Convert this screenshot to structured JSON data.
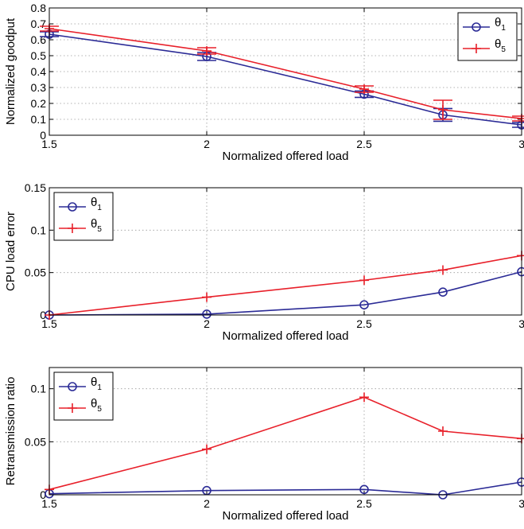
{
  "chart_data": [
    {
      "type": "line",
      "title": "",
      "xlabel": "Normalized offered load",
      "ylabel": "Normalized goodput",
      "xlim": [
        1.5,
        3
      ],
      "ylim": [
        0,
        0.8
      ],
      "xticks": [
        "1.5",
        "2",
        "2.5",
        "3"
      ],
      "yticks": [
        "0",
        "0.1",
        "0.2",
        "0.3",
        "0.4",
        "0.5",
        "0.6",
        "0.7",
        "0.8"
      ],
      "grid": true,
      "legend_position": "top-right",
      "x": [
        1.5,
        2,
        2.5,
        2.75,
        3
      ],
      "series": [
        {
          "name": "θ",
          "subscript": "1",
          "marker": "circle",
          "color": "#2b2b96",
          "values": [
            0.635,
            0.495,
            0.258,
            0.128,
            0.065
          ],
          "errors": [
            0.015,
            0.025,
            0.02,
            0.04,
            0.015
          ]
        },
        {
          "name": "θ",
          "subscript": "5",
          "marker": "plus",
          "color": "#e8202a",
          "values": [
            0.67,
            0.53,
            0.29,
            0.16,
            0.105
          ],
          "errors": [
            0.015,
            0.02,
            0.02,
            0.06,
            0.015
          ]
        }
      ]
    },
    {
      "type": "line",
      "title": "",
      "xlabel": "Normalized offered load",
      "ylabel": "CPU load error",
      "xlim": [
        1.5,
        3
      ],
      "ylim": [
        0,
        0.15
      ],
      "xticks": [
        "1.5",
        "2",
        "2.5",
        "3"
      ],
      "yticks": [
        "0",
        "0.05",
        "0.1",
        "0.15"
      ],
      "grid": true,
      "legend_position": "top-left",
      "x": [
        1.5,
        2,
        2.5,
        2.75,
        3
      ],
      "series": [
        {
          "name": "θ",
          "subscript": "1",
          "marker": "circle",
          "color": "#2b2b96",
          "values": [
            0,
            0.001,
            0.012,
            0.027,
            0.051
          ]
        },
        {
          "name": "θ",
          "subscript": "5",
          "marker": "plus",
          "color": "#e8202a",
          "values": [
            0,
            0.021,
            0.041,
            0.053,
            0.07
          ]
        }
      ]
    },
    {
      "type": "line",
      "title": "",
      "xlabel": "Normalized offered load",
      "ylabel": "Retransmission ratio",
      "xlim": [
        1.5,
        3
      ],
      "ylim": [
        0,
        0.12
      ],
      "xticks": [
        "1.5",
        "2",
        "2.5",
        "3"
      ],
      "yticks": [
        "0",
        "0.05",
        "0.1"
      ],
      "grid": true,
      "legend_position": "top-left",
      "x": [
        1.5,
        2,
        2.5,
        2.75,
        3
      ],
      "series": [
        {
          "name": "θ",
          "subscript": "1",
          "marker": "circle",
          "color": "#2b2b96",
          "values": [
            0.001,
            0.004,
            0.005,
            0,
            0.012
          ]
        },
        {
          "name": "θ",
          "subscript": "5",
          "marker": "plus",
          "color": "#e8202a",
          "values": [
            0.005,
            0.043,
            0.092,
            0.06,
            0.053
          ]
        }
      ]
    }
  ]
}
